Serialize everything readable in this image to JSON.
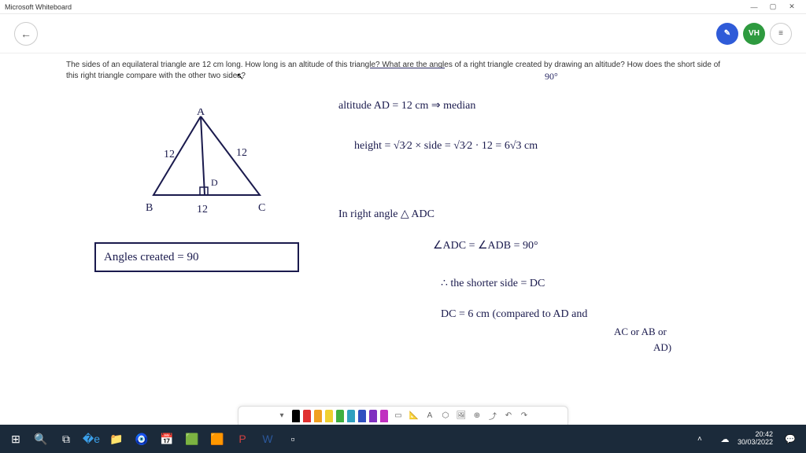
{
  "titlebar": {
    "app_name": "Microsoft Whiteboard"
  },
  "toolbar": {
    "avatar_initials": "VH"
  },
  "question": {
    "text": "The sides of an equilateral triangle are 12 cm long. How long is an altitude of this triangle? What are the angles of a right triangle created by drawing an altitude? How does the short side of this right triangle compare with the other two sides?",
    "ninety_note": "90°"
  },
  "triangle": {
    "labels": {
      "A": "A",
      "B": "B",
      "C": "C",
      "D": "D"
    },
    "side_ab": "12",
    "side_ac": "12",
    "side_bc": "12"
  },
  "handwriting": {
    "line1": "altitude  AD  =  12 cm ⇒  median",
    "line2": "height  =  √3⁄2 × side  =  √3⁄2 · 12  =  6√3 cm",
    "line3": "In  right angle  △ ADC",
    "line4": "∠ADC  =  ∠ADB  = 90°",
    "line5": "∴  the shorter side  =  DC",
    "line6": "DC = 6 cm   (compared to AD and",
    "line7": "AC or AB or",
    "line8": "AD)",
    "boxed": "Angles  created  = 90"
  },
  "pen_colors": [
    "#000000",
    "#e03030",
    "#f0a020",
    "#f0d030",
    "#40b040",
    "#30a0c0",
    "#3050c0",
    "#8030c0",
    "#c030c0"
  ],
  "tool_icons": [
    "📐",
    "A",
    "⬡",
    "🖼",
    "⊕",
    "⤴",
    "↶",
    "↷"
  ],
  "taskbar": {
    "items": [
      {
        "color": "#ffffff",
        "glyph": "⊞"
      },
      {
        "color": "#ffffff",
        "glyph": "🔍"
      },
      {
        "color": "#ffffff",
        "glyph": "⧉"
      },
      {
        "color": "#3ba0ea",
        "glyph": "�е"
      },
      {
        "color": "#ffcc33",
        "glyph": "📁"
      },
      {
        "color": "#3070d0",
        "glyph": "🧿"
      },
      {
        "color": "#3090d0",
        "glyph": "📅"
      },
      {
        "color": "#30a070",
        "glyph": "🟩"
      },
      {
        "color": "#ff6a00",
        "glyph": "🟧"
      },
      {
        "color": "#d04040",
        "glyph": "P"
      },
      {
        "color": "#2b579a",
        "glyph": "W"
      },
      {
        "color": "#ffffff",
        "glyph": "▫"
      }
    ],
    "clock": {
      "time": "20:42",
      "date": "30/03/2022"
    }
  },
  "colors": {
    "ink": "#1a1a4d",
    "canvas_bg": "#ffffff",
    "toolbar_bg": "#ffffff",
    "taskbar_bg": "#1b2a3a"
  }
}
